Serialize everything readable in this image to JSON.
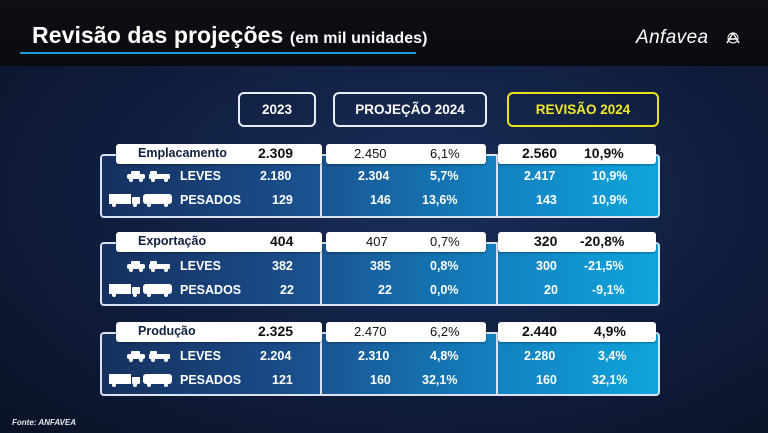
{
  "header": {
    "title": "Revisão das projeções",
    "title_sub": "(em mil unidades)",
    "logo": "Anfavea"
  },
  "columns": {
    "c2023": "2023",
    "proj2024": "PROJEÇÃO 2024",
    "rev2024": "REVISÃO 2024"
  },
  "blocks": [
    {
      "label": "Emplacamento",
      "total": {
        "y2023": "2.309",
        "proj": "2.450",
        "proj_pct": "6,1%",
        "rev": "2.560",
        "rev_pct": "10,9%"
      },
      "leves": {
        "label": "LEVES",
        "y2023": "2.180",
        "proj": "2.304",
        "proj_pct": "5,7%",
        "rev": "2.417",
        "rev_pct": "10,9%"
      },
      "pesados": {
        "label": "PESADOS",
        "y2023": "129",
        "proj": "146",
        "proj_pct": "13,6%",
        "rev": "143",
        "rev_pct": "10,9%"
      }
    },
    {
      "label": "Exportação",
      "total": {
        "y2023": "404",
        "proj": "407",
        "proj_pct": "0,7%",
        "rev": "320",
        "rev_pct": "-20,8%"
      },
      "leves": {
        "label": "LEVES",
        "y2023": "382",
        "proj": "385",
        "proj_pct": "0,8%",
        "rev": "300",
        "rev_pct": "-21,5%"
      },
      "pesados": {
        "label": "PESADOS",
        "y2023": "22",
        "proj": "22",
        "proj_pct": "0,0%",
        "rev": "20",
        "rev_pct": "-9,1%"
      }
    },
    {
      "label": "Produção",
      "total": {
        "y2023": "2.325",
        "proj": "2.470",
        "proj_pct": "6,2%",
        "rev": "2.440",
        "rev_pct": "4,9%"
      },
      "leves": {
        "label": "LEVES",
        "y2023": "2.204",
        "proj": "2.310",
        "proj_pct": "4,8%",
        "rev": "2.280",
        "rev_pct": "3,4%"
      },
      "pesados": {
        "label": "PESADOS",
        "y2023": "121",
        "proj": "160",
        "proj_pct": "32,1%",
        "rev": "160",
        "rev_pct": "32,1%"
      }
    }
  ],
  "footer": "Fonte: ANFAVEA",
  "colors": {
    "accent": "#1a9ad6",
    "revision": "#ece21a",
    "gradient_end": "#0ea5dc"
  },
  "icons": {
    "leves": "car-pickup-icon",
    "pesados": "truck-bus-icon",
    "logo": "anfavea-logo-icon"
  }
}
